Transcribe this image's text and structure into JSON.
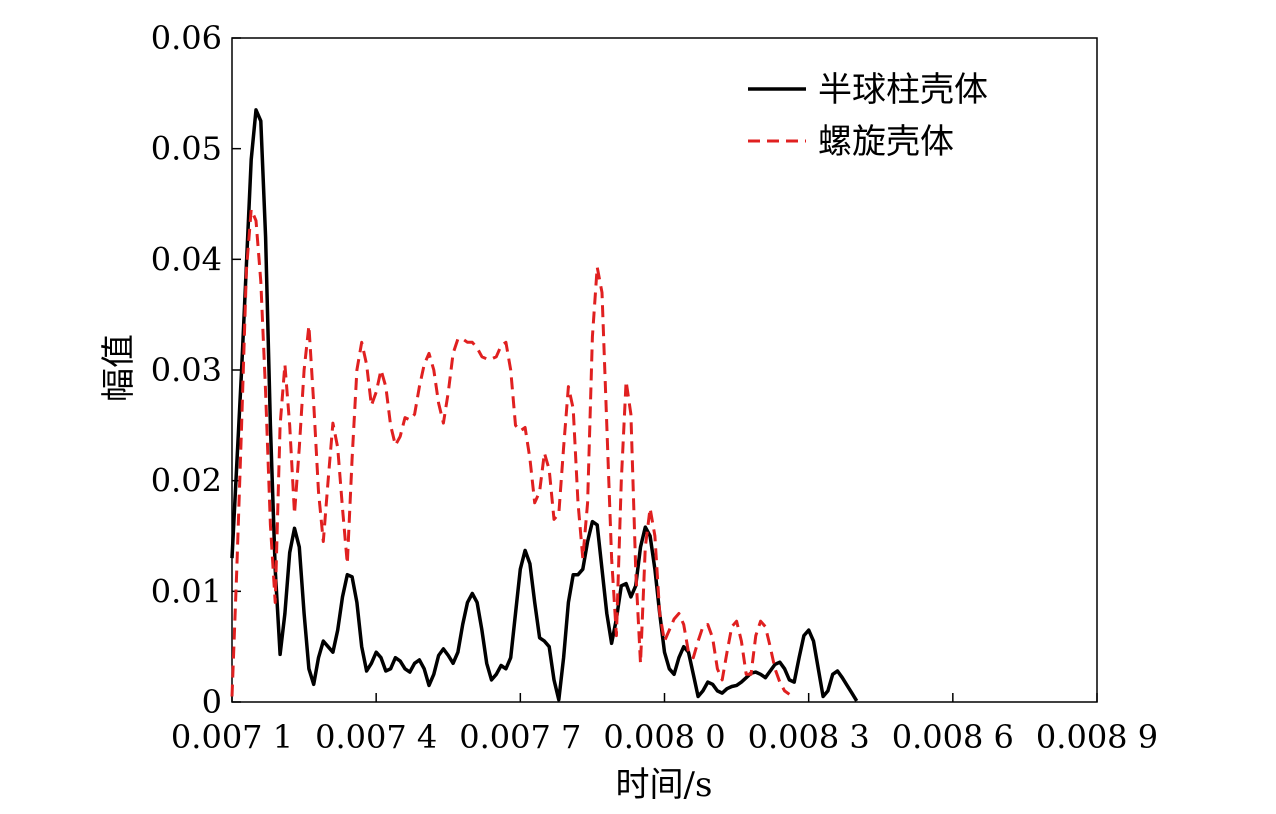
{
  "chart_data": {
    "type": "line",
    "xlabel": "时间/s",
    "ylabel": "幅值",
    "xlim": [
      0.0071,
      0.0089
    ],
    "ylim": [
      0,
      0.06
    ],
    "x_ticks": [
      {
        "value": 0.0071,
        "label": "0.007 1"
      },
      {
        "value": 0.0074,
        "label": "0.007 4"
      },
      {
        "value": 0.0077,
        "label": "0.007 7"
      },
      {
        "value": 0.008,
        "label": "0.008 0"
      },
      {
        "value": 0.0083,
        "label": "0.008 3"
      },
      {
        "value": 0.0086,
        "label": "0.008 6"
      },
      {
        "value": 0.0089,
        "label": "0.008 9"
      }
    ],
    "y_ticks": [
      {
        "value": 0,
        "label": "0"
      },
      {
        "value": 0.01,
        "label": "0.01"
      },
      {
        "value": 0.02,
        "label": "0.02"
      },
      {
        "value": 0.03,
        "label": "0.03"
      },
      {
        "value": 0.04,
        "label": "0.04"
      },
      {
        "value": 0.05,
        "label": "0.05"
      },
      {
        "value": 0.06,
        "label": "0.06"
      }
    ],
    "grid": false,
    "legend_position": "top-right",
    "series": [
      {
        "name": "半球柱壳体",
        "color": "#000000",
        "style": "solid",
        "points": [
          [
            0.0071,
            0.013
          ],
          [
            0.00712,
            0.03
          ],
          [
            0.00714,
            0.049
          ],
          [
            0.00715,
            0.0535
          ],
          [
            0.00716,
            0.0525
          ],
          [
            0.00717,
            0.042
          ],
          [
            0.00718,
            0.025
          ],
          [
            0.00719,
            0.012
          ],
          [
            0.0072,
            0.0043
          ],
          [
            0.00721,
            0.008
          ],
          [
            0.00722,
            0.0135
          ],
          [
            0.00723,
            0.0157
          ],
          [
            0.00724,
            0.014
          ],
          [
            0.00725,
            0.008
          ],
          [
            0.00726,
            0.003
          ],
          [
            0.00727,
            0.0016
          ],
          [
            0.00728,
            0.004
          ],
          [
            0.00729,
            0.0055
          ],
          [
            0.0073,
            0.005
          ],
          [
            0.00731,
            0.0045
          ],
          [
            0.00732,
            0.0065
          ],
          [
            0.00733,
            0.0095
          ],
          [
            0.00734,
            0.0115
          ],
          [
            0.00735,
            0.0113
          ],
          [
            0.00736,
            0.009
          ],
          [
            0.00737,
            0.005
          ],
          [
            0.00738,
            0.0028
          ],
          [
            0.00739,
            0.0035
          ],
          [
            0.0074,
            0.0045
          ],
          [
            0.00741,
            0.004
          ],
          [
            0.00742,
            0.0028
          ],
          [
            0.00743,
            0.003
          ],
          [
            0.00744,
            0.004
          ],
          [
            0.00745,
            0.0037
          ],
          [
            0.00746,
            0.003
          ],
          [
            0.00747,
            0.0027
          ],
          [
            0.00748,
            0.0035
          ],
          [
            0.00749,
            0.0038
          ],
          [
            0.0075,
            0.003
          ],
          [
            0.00751,
            0.0015
          ],
          [
            0.00752,
            0.0025
          ],
          [
            0.00753,
            0.0042
          ],
          [
            0.00754,
            0.0048
          ],
          [
            0.00755,
            0.0042
          ],
          [
            0.00756,
            0.0035
          ],
          [
            0.00757,
            0.0045
          ],
          [
            0.00758,
            0.007
          ],
          [
            0.00759,
            0.009
          ],
          [
            0.0076,
            0.0098
          ],
          [
            0.00761,
            0.009
          ],
          [
            0.00762,
            0.0065
          ],
          [
            0.00763,
            0.0035
          ],
          [
            0.00764,
            0.002
          ],
          [
            0.00765,
            0.0025
          ],
          [
            0.00766,
            0.0033
          ],
          [
            0.00767,
            0.003
          ],
          [
            0.00768,
            0.004
          ],
          [
            0.00769,
            0.008
          ],
          [
            0.0077,
            0.012
          ],
          [
            0.00771,
            0.0137
          ],
          [
            0.00772,
            0.0125
          ],
          [
            0.00773,
            0.009
          ],
          [
            0.00774,
            0.0058
          ],
          [
            0.00775,
            0.0055
          ],
          [
            0.00776,
            0.005
          ],
          [
            0.00777,
            0.002
          ],
          [
            0.00778,
            0.0002
          ],
          [
            0.00779,
            0.004
          ],
          [
            0.0078,
            0.009
          ],
          [
            0.00781,
            0.0115
          ],
          [
            0.00782,
            0.0115
          ],
          [
            0.00783,
            0.012
          ],
          [
            0.00784,
            0.0145
          ],
          [
            0.00785,
            0.0163
          ],
          [
            0.00786,
            0.016
          ],
          [
            0.00787,
            0.012
          ],
          [
            0.00788,
            0.008
          ],
          [
            0.00789,
            0.0053
          ],
          [
            0.0079,
            0.0075
          ],
          [
            0.00791,
            0.0105
          ],
          [
            0.00792,
            0.0107
          ],
          [
            0.00793,
            0.0095
          ],
          [
            0.00794,
            0.0105
          ],
          [
            0.00795,
            0.014
          ],
          [
            0.00796,
            0.0158
          ],
          [
            0.00797,
            0.015
          ],
          [
            0.00798,
            0.012
          ],
          [
            0.00799,
            0.008
          ],
          [
            0.008,
            0.0045
          ],
          [
            0.00801,
            0.003
          ],
          [
            0.00802,
            0.0025
          ],
          [
            0.00803,
            0.004
          ],
          [
            0.00804,
            0.005
          ],
          [
            0.00805,
            0.0045
          ],
          [
            0.00806,
            0.0025
          ],
          [
            0.00807,
            0.0005
          ],
          [
            0.00808,
            0.001
          ],
          [
            0.00809,
            0.0018
          ],
          [
            0.0081,
            0.0016
          ],
          [
            0.00811,
            0.001
          ],
          [
            0.00812,
            0.0008
          ],
          [
            0.00813,
            0.0012
          ],
          [
            0.00814,
            0.0014
          ],
          [
            0.00815,
            0.0015
          ],
          [
            0.00816,
            0.0018
          ],
          [
            0.00817,
            0.0022
          ],
          [
            0.00818,
            0.0026
          ],
          [
            0.00819,
            0.0027
          ],
          [
            0.0082,
            0.0025
          ],
          [
            0.00821,
            0.0022
          ],
          [
            0.00822,
            0.0028
          ],
          [
            0.00823,
            0.0034
          ],
          [
            0.00824,
            0.0036
          ],
          [
            0.00825,
            0.003
          ],
          [
            0.00826,
            0.002
          ],
          [
            0.00827,
            0.0018
          ],
          [
            0.00828,
            0.004
          ],
          [
            0.00829,
            0.006
          ],
          [
            0.0083,
            0.0065
          ],
          [
            0.00831,
            0.0055
          ],
          [
            0.00832,
            0.003
          ],
          [
            0.00833,
            0.0005
          ],
          [
            0.00834,
            0.001
          ],
          [
            0.00835,
            0.0025
          ],
          [
            0.00836,
            0.0028
          ],
          [
            0.00837,
            0.0022
          ],
          [
            0.00838,
            0.0015
          ],
          [
            0.00839,
            0.0008
          ],
          [
            0.0084,
            0.0001
          ]
        ]
      },
      {
        "name": "螺旋壳体",
        "color": "#e02020",
        "style": "dashed",
        "points": [
          [
            0.0071,
            0.0005
          ],
          [
            0.00711,
            0.012
          ],
          [
            0.00712,
            0.025
          ],
          [
            0.00713,
            0.039
          ],
          [
            0.00714,
            0.0445
          ],
          [
            0.00715,
            0.0435
          ],
          [
            0.00716,
            0.038
          ],
          [
            0.00717,
            0.028
          ],
          [
            0.00718,
            0.016
          ],
          [
            0.00719,
            0.009
          ],
          [
            0.0072,
            0.025
          ],
          [
            0.00721,
            0.0305
          ],
          [
            0.00722,
            0.025
          ],
          [
            0.00723,
            0.017
          ],
          [
            0.00724,
            0.023
          ],
          [
            0.00725,
            0.03
          ],
          [
            0.00726,
            0.034
          ],
          [
            0.00727,
            0.027
          ],
          [
            0.00728,
            0.019
          ],
          [
            0.00729,
            0.0145
          ],
          [
            0.0073,
            0.02
          ],
          [
            0.00731,
            0.0252
          ],
          [
            0.00732,
            0.023
          ],
          [
            0.00733,
            0.0175
          ],
          [
            0.00734,
            0.0125
          ],
          [
            0.00735,
            0.022
          ],
          [
            0.00736,
            0.03
          ],
          [
            0.00737,
            0.0325
          ],
          [
            0.00738,
            0.0305
          ],
          [
            0.00739,
            0.0268
          ],
          [
            0.0074,
            0.028
          ],
          [
            0.00741,
            0.03
          ],
          [
            0.00742,
            0.0285
          ],
          [
            0.00743,
            0.025
          ],
          [
            0.00744,
            0.0232
          ],
          [
            0.00745,
            0.024
          ],
          [
            0.00746,
            0.0257
          ],
          [
            0.00747,
            0.0255
          ],
          [
            0.00748,
            0.026
          ],
          [
            0.00749,
            0.0285
          ],
          [
            0.0075,
            0.0305
          ],
          [
            0.00751,
            0.0315
          ],
          [
            0.00752,
            0.03
          ],
          [
            0.00753,
            0.027
          ],
          [
            0.00754,
            0.0252
          ],
          [
            0.00755,
            0.028
          ],
          [
            0.00756,
            0.0315
          ],
          [
            0.00757,
            0.0328
          ],
          [
            0.00758,
            0.0328
          ],
          [
            0.00759,
            0.0325
          ],
          [
            0.0076,
            0.0325
          ],
          [
            0.00761,
            0.032
          ],
          [
            0.00762,
            0.0312
          ],
          [
            0.00763,
            0.031
          ],
          [
            0.00764,
            0.031
          ],
          [
            0.00765,
            0.0312
          ],
          [
            0.00766,
            0.0322
          ],
          [
            0.00767,
            0.0325
          ],
          [
            0.00768,
            0.03
          ],
          [
            0.00769,
            0.025
          ],
          [
            0.0077,
            0.0245
          ],
          [
            0.00771,
            0.0248
          ],
          [
            0.00772,
            0.022
          ],
          [
            0.00773,
            0.018
          ],
          [
            0.00774,
            0.019
          ],
          [
            0.00775,
            0.0225
          ],
          [
            0.00776,
            0.021
          ],
          [
            0.00777,
            0.0165
          ],
          [
            0.00778,
            0.017
          ],
          [
            0.00779,
            0.023
          ],
          [
            0.0078,
            0.0285
          ],
          [
            0.00781,
            0.0265
          ],
          [
            0.00782,
            0.018
          ],
          [
            0.00783,
            0.013
          ],
          [
            0.00784,
            0.018
          ],
          [
            0.00785,
            0.033
          ],
          [
            0.00786,
            0.0393
          ],
          [
            0.00787,
            0.037
          ],
          [
            0.00788,
            0.025
          ],
          [
            0.00789,
            0.013
          ],
          [
            0.0079,
            0.006
          ],
          [
            0.00791,
            0.02
          ],
          [
            0.00792,
            0.029
          ],
          [
            0.00793,
            0.026
          ],
          [
            0.00794,
            0.012
          ],
          [
            0.00795,
            0.0035
          ],
          [
            0.00796,
            0.014
          ],
          [
            0.00797,
            0.0175
          ],
          [
            0.00798,
            0.015
          ],
          [
            0.00799,
            0.008
          ],
          [
            0.008,
            0.0055
          ],
          [
            0.00801,
            0.0065
          ],
          [
            0.00802,
            0.0075
          ],
          [
            0.00803,
            0.008
          ],
          [
            0.00804,
            0.007
          ],
          [
            0.00805,
            0.0045
          ],
          [
            0.00806,
            0.004
          ],
          [
            0.00807,
            0.0055
          ],
          [
            0.00808,
            0.0068
          ],
          [
            0.00809,
            0.007
          ],
          [
            0.0081,
            0.0058
          ],
          [
            0.00811,
            0.003
          ],
          [
            0.00812,
            0.002
          ],
          [
            0.00813,
            0.0045
          ],
          [
            0.00814,
            0.0068
          ],
          [
            0.00815,
            0.0073
          ],
          [
            0.00816,
            0.0055
          ],
          [
            0.00817,
            0.0025
          ],
          [
            0.00818,
            0.0025
          ],
          [
            0.00819,
            0.006
          ],
          [
            0.0082,
            0.0073
          ],
          [
            0.00821,
            0.0068
          ],
          [
            0.00822,
            0.005
          ],
          [
            0.00823,
            0.003
          ],
          [
            0.00824,
            0.0018
          ],
          [
            0.00825,
            0.001
          ],
          [
            0.00826,
            0.0007
          ]
        ]
      }
    ]
  }
}
